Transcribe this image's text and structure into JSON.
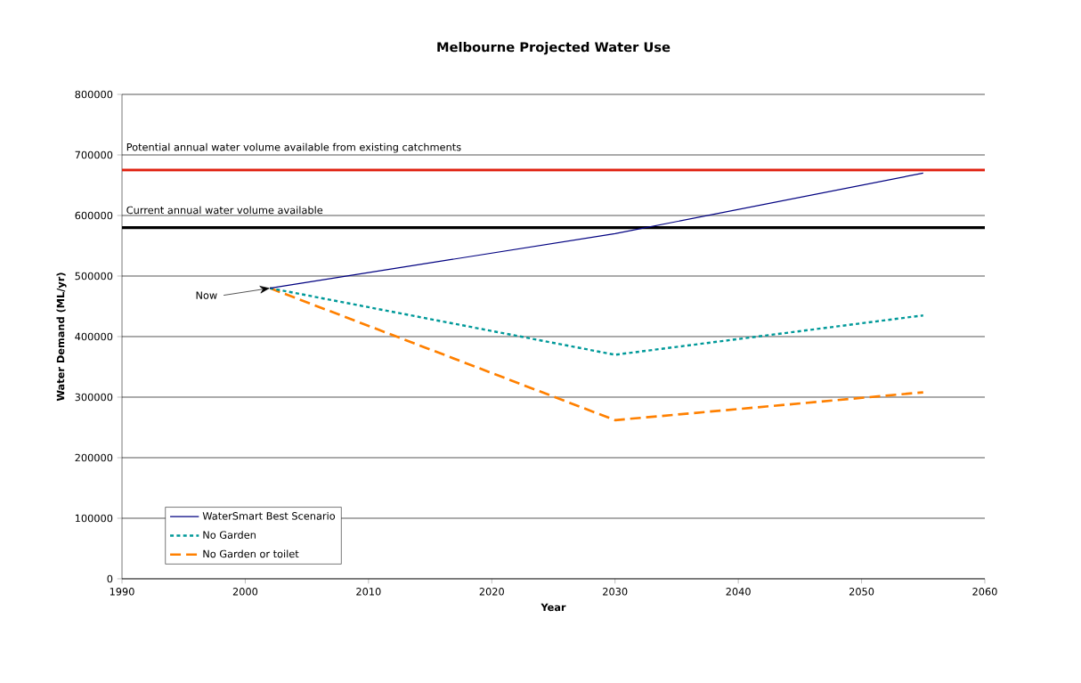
{
  "chart_data": {
    "type": "line",
    "title": "Melbourne Projected Water Use",
    "xlabel": "Year",
    "ylabel": "Water Demand (ML/yr)",
    "xlim": [
      1990,
      2060
    ],
    "xticks": [
      1990,
      2000,
      2010,
      2020,
      2030,
      2040,
      2050,
      2060
    ],
    "ylim": [
      0,
      800000
    ],
    "yticks": [
      0,
      100000,
      200000,
      300000,
      400000,
      500000,
      600000,
      700000,
      800000
    ],
    "grid": "y",
    "legend": "bottom left",
    "marker": "none",
    "series": [
      {
        "name": "WaterSmart Best Scenario",
        "color": "#000080",
        "line_style": "solid",
        "x": [
          2002,
          2030,
          2055
        ],
        "values": [
          480000,
          570000,
          670000
        ]
      },
      {
        "name": "No Garden",
        "color": "#009999",
        "line_style": "dotted",
        "x": [
          2002,
          2030,
          2055
        ],
        "values": [
          480000,
          370000,
          435000
        ]
      },
      {
        "name": "No Garden or toilet",
        "color": "#ff8000",
        "line_style": "dashed",
        "x": [
          2002,
          2030,
          2055
        ],
        "values": [
          480000,
          262000,
          308000
        ]
      }
    ],
    "ref_lines": [
      {
        "axis": "y",
        "value": 675000,
        "label": "Potential annual water volume available from existing catchments",
        "color": "#e02010"
      },
      {
        "axis": "y",
        "value": 580000,
        "label": "Current annual water volume available",
        "color": "#000000"
      }
    ],
    "annotations": [
      {
        "text": "Now",
        "x": 2002,
        "y": 480000
      }
    ]
  }
}
